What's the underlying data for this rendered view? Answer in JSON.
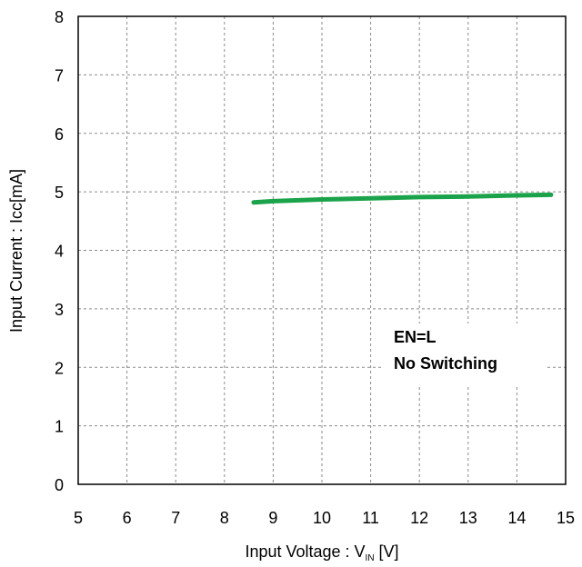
{
  "chart_data": {
    "type": "line",
    "xlabel": {
      "main": "Input Voltage : V",
      "sub": "IN",
      "unit": " [V]"
    },
    "ylabel": "Input Current : Icc[mA]",
    "xlim": [
      5,
      15
    ],
    "ylim": [
      0,
      8
    ],
    "x_ticks": [
      "5",
      "6",
      "7",
      "8",
      "9",
      "10",
      "11",
      "12",
      "13",
      "14",
      "15"
    ],
    "y_ticks": [
      "0",
      "1",
      "2",
      "3",
      "4",
      "5",
      "6",
      "7",
      "8"
    ],
    "grid": true,
    "series": [
      {
        "color": "#1aa34a",
        "x": [
          8.6,
          9,
          10,
          11,
          12,
          13,
          14,
          14.7
        ],
        "y": [
          4.82,
          4.84,
          4.87,
          4.89,
          4.91,
          4.92,
          4.94,
          4.95
        ]
      }
    ],
    "annotations": [
      "EN=L",
      "No Switching"
    ]
  }
}
